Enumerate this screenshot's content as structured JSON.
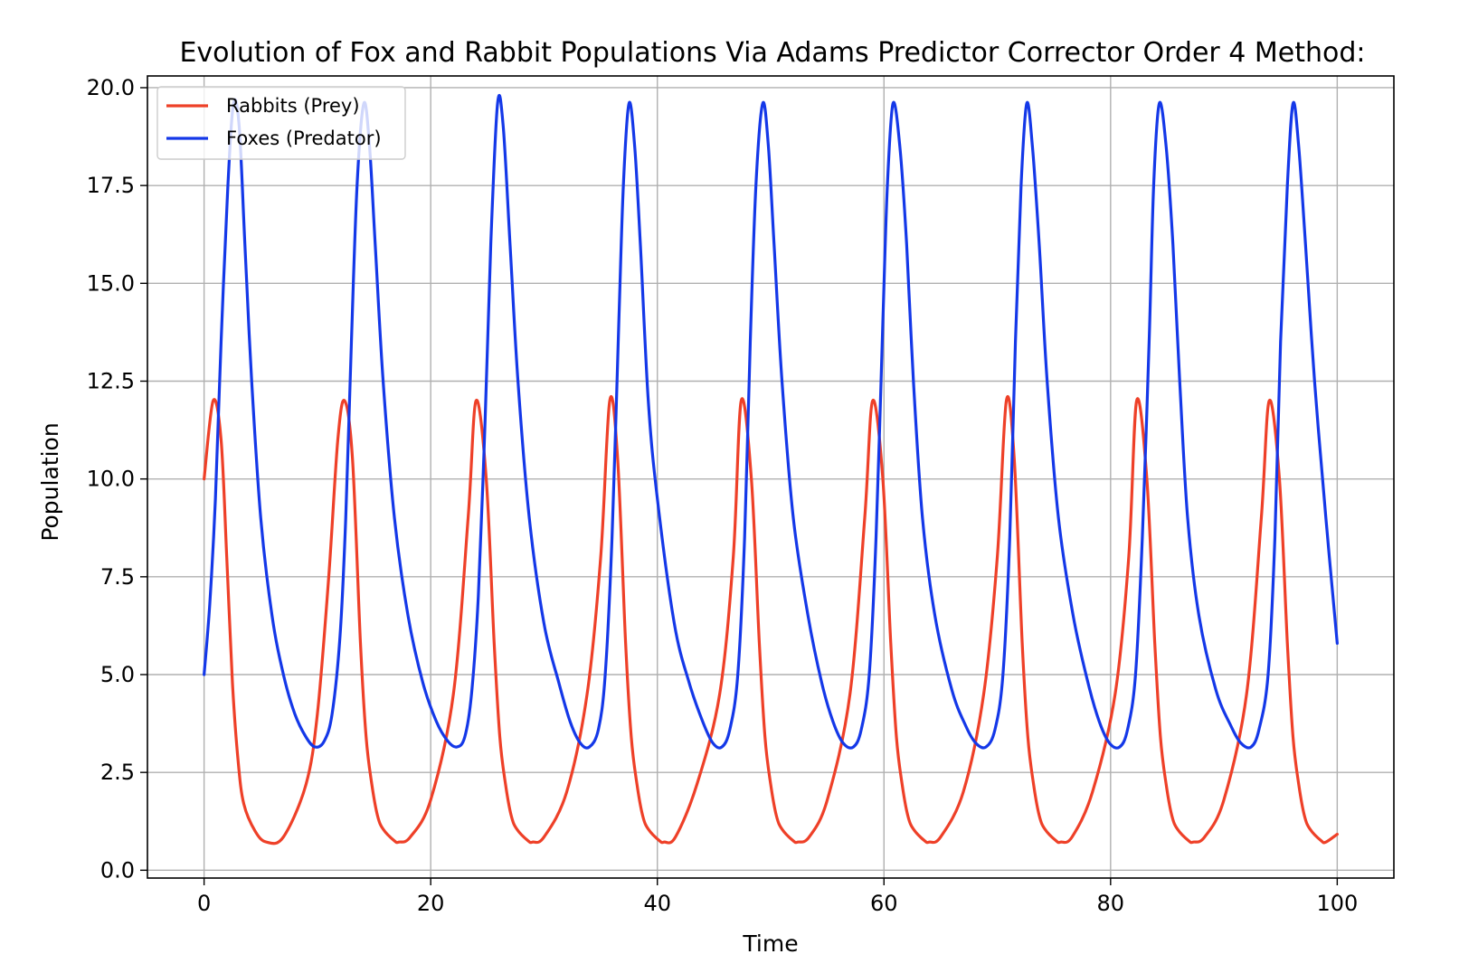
{
  "chart_data": {
    "type": "line",
    "title": "Evolution of Fox and Rabbit Populations Via Adams Predictor Corrector Order 4 Method:",
    "xlabel": "Time",
    "ylabel": "Population",
    "xlim": [
      -5,
      105
    ],
    "ylim": [
      -0.2,
      20.3
    ],
    "xticks": [
      0,
      20,
      40,
      60,
      80,
      100
    ],
    "xtick_labels": [
      "0",
      "20",
      "40",
      "60",
      "80",
      "100"
    ],
    "yticks": [
      0,
      2.5,
      5,
      7.5,
      10,
      12.5,
      15,
      17.5,
      20
    ],
    "ytick_labels": [
      "0.0",
      "2.5",
      "5.0",
      "7.5",
      "10.0",
      "12.5",
      "15.0",
      "17.5",
      "20.0"
    ],
    "grid": true,
    "legend_position": "upper-left",
    "series": [
      {
        "name": "Rabbits (Prey)",
        "color": "#ee4028",
        "x": [
          0,
          0.8,
          1.5,
          2.0,
          2.5,
          3.0,
          3.5,
          4.5,
          5.5,
          7.0,
          9.0,
          10.0,
          11.0,
          11.8,
          12.4,
          13.1,
          13.8,
          14.3,
          14.8,
          15.3,
          15.8,
          16.8,
          17.2,
          18.2,
          20.0,
          22.0,
          23.3,
          24.0,
          24.9,
          25.6,
          26.1,
          26.6,
          27.1,
          27.6,
          28.6,
          29.0,
          30.0,
          32.0,
          33.8,
          35.0,
          35.8,
          36.5,
          37.2,
          37.7,
          38.2,
          38.7,
          39.2,
          40.2,
          40.6,
          41.6,
          43.5,
          45.5,
          46.7,
          47.4,
          48.3,
          49.0,
          49.5,
          50.0,
          50.5,
          51.0,
          52.0,
          52.4,
          53.4,
          55.0,
          57.0,
          58.3,
          59.0,
          59.9,
          60.6,
          61.1,
          61.6,
          62.1,
          62.6,
          63.6,
          64.0,
          65.0,
          67.0,
          68.8,
          70.0,
          70.8,
          71.5,
          72.2,
          72.7,
          73.2,
          73.7,
          74.2,
          75.2,
          75.6,
          76.6,
          78.4,
          80.4,
          81.6,
          82.3,
          83.2,
          83.9,
          84.4,
          84.9,
          85.4,
          85.9,
          86.9,
          87.3,
          88.3,
          90.0,
          92.0,
          93.3,
          94.0,
          94.9,
          95.6,
          96.1,
          96.6,
          97.1,
          97.6,
          98.6,
          99.0,
          100
        ],
        "y": [
          10.0,
          12.0,
          11.0,
          8.0,
          4.8,
          2.8,
          1.7,
          1.0,
          0.72,
          0.85,
          2.2,
          4.0,
          7.5,
          11.0,
          12.0,
          10.5,
          5.8,
          3.4,
          2.2,
          1.4,
          1.05,
          0.75,
          0.72,
          0.85,
          1.8,
          4.5,
          9.0,
          12.0,
          10.0,
          5.8,
          3.4,
          2.2,
          1.4,
          1.05,
          0.75,
          0.72,
          0.85,
          2.0,
          4.5,
          8.0,
          12.0,
          10.5,
          5.8,
          3.4,
          2.2,
          1.4,
          1.05,
          0.75,
          0.72,
          0.85,
          2.2,
          4.5,
          8.0,
          12.0,
          10.0,
          5.8,
          3.4,
          2.2,
          1.4,
          1.05,
          0.75,
          0.72,
          0.85,
          1.8,
          4.5,
          9.0,
          12.0,
          10.0,
          5.8,
          3.4,
          2.2,
          1.4,
          1.05,
          0.75,
          0.72,
          0.85,
          2.0,
          4.5,
          8.0,
          12.0,
          10.5,
          5.8,
          3.4,
          2.2,
          1.4,
          1.05,
          0.75,
          0.72,
          0.85,
          2.0,
          4.5,
          8.0,
          12.0,
          10.0,
          5.8,
          3.4,
          2.2,
          1.4,
          1.05,
          0.75,
          0.72,
          0.85,
          1.8,
          4.5,
          9.0,
          12.0,
          10.0,
          5.8,
          3.4,
          2.2,
          1.4,
          1.05,
          0.75,
          0.72,
          0.92
        ]
      },
      {
        "name": "Foxes (Predator)",
        "color": "#1438e8",
        "x": [
          0,
          0.5,
          1.0,
          1.5,
          2.1,
          2.6,
          3.1,
          3.6,
          4.2,
          5.0,
          6.0,
          7.0,
          8.0,
          9.0,
          9.8,
          10.6,
          11.3,
          12.0,
          12.5,
          13.0,
          13.5,
          14.1,
          14.6,
          15.1,
          15.8,
          16.8,
          18.0,
          19.3,
          20.5,
          21.5,
          22.3,
          23.0,
          23.6,
          24.2,
          24.8,
          25.3,
          25.9,
          26.4,
          27.0,
          27.7,
          28.7,
          30.0,
          31.3,
          32.3,
          33.2,
          34.0,
          34.8,
          35.4,
          36.0,
          36.6,
          37.0,
          37.5,
          38.0,
          38.5,
          39.2,
          40.0,
          41.5,
          42.8,
          44.0,
          44.9,
          45.7,
          46.4,
          47.1,
          47.7,
          48.2,
          48.7,
          49.3,
          49.8,
          50.3,
          51.0,
          52.0,
          53.3,
          54.5,
          55.5,
          56.4,
          57.3,
          58.0,
          58.7,
          59.3,
          59.9,
          60.3,
          60.8,
          61.4,
          62.0,
          62.6,
          63.4,
          64.5,
          66.0,
          67.2,
          68.1,
          69.0,
          69.8,
          70.5,
          71.1,
          71.6,
          72.1,
          72.6,
          73.1,
          73.7,
          74.4,
          75.4,
          76.7,
          78.0,
          79.0,
          79.9,
          80.8,
          81.5,
          82.2,
          82.8,
          83.4,
          83.8,
          84.3,
          84.9,
          85.5,
          86.1,
          86.8,
          87.8,
          89.3,
          90.6,
          91.5,
          92.4,
          93.1,
          93.9,
          94.5,
          95.0,
          95.6,
          96.1,
          96.6,
          97.2,
          98.0,
          99.0,
          100
        ],
        "y": [
          5.0,
          6.8,
          9.5,
          13.5,
          17.5,
          19.6,
          19.0,
          16.0,
          12.5,
          9.0,
          6.5,
          5.0,
          4.0,
          3.4,
          3.15,
          3.3,
          4.0,
          6.0,
          9.0,
          13.5,
          17.5,
          19.6,
          18.5,
          16.0,
          12.5,
          9.0,
          6.5,
          4.8,
          3.8,
          3.3,
          3.15,
          3.4,
          4.5,
          7.0,
          11.5,
          16.0,
          19.6,
          19.0,
          16.0,
          12.5,
          9.0,
          6.3,
          4.8,
          3.8,
          3.25,
          3.15,
          3.6,
          5.0,
          8.5,
          14.0,
          17.5,
          19.6,
          18.5,
          16.0,
          12.0,
          9.5,
          6.3,
          4.8,
          3.8,
          3.25,
          3.15,
          3.6,
          5.0,
          8.5,
          13.5,
          17.5,
          19.6,
          18.5,
          16.0,
          12.5,
          9.0,
          6.5,
          4.8,
          3.8,
          3.25,
          3.15,
          3.6,
          5.0,
          8.5,
          14.0,
          17.5,
          19.6,
          18.5,
          16.0,
          12.5,
          9.0,
          6.5,
          4.6,
          3.7,
          3.25,
          3.15,
          3.6,
          5.0,
          8.5,
          13.5,
          17.5,
          19.6,
          18.5,
          16.0,
          12.5,
          9.0,
          6.5,
          4.8,
          3.8,
          3.25,
          3.15,
          3.6,
          5.0,
          8.5,
          13.5,
          17.5,
          19.6,
          18.5,
          16.0,
          12.5,
          9.0,
          6.5,
          4.6,
          3.7,
          3.25,
          3.15,
          3.6,
          5.0,
          8.5,
          13.5,
          17.5,
          19.6,
          18.5,
          16.0,
          12.5,
          9.0,
          5.8
        ]
      }
    ]
  }
}
